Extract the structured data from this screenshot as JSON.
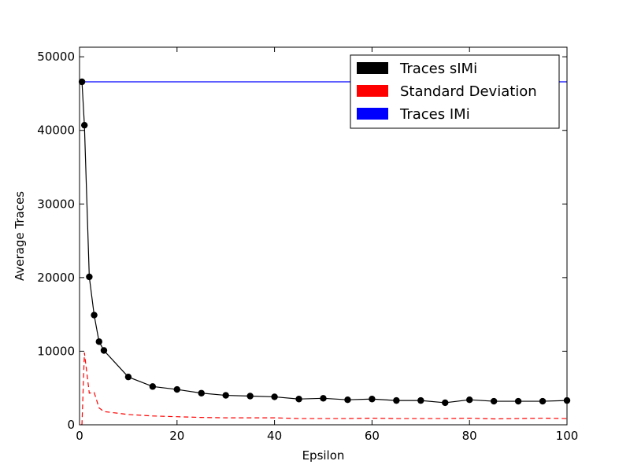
{
  "chart_data": {
    "type": "line",
    "title": "",
    "xlabel": "Epsilon",
    "ylabel": "Average Traces",
    "xlim": [
      0,
      100
    ],
    "ylim": [
      0,
      51300
    ],
    "x_ticks": [
      0,
      20,
      40,
      60,
      80,
      100
    ],
    "y_ticks": [
      0,
      10000,
      20000,
      30000,
      40000,
      50000
    ],
    "grid": false,
    "legend_position": "top-right",
    "series": [
      {
        "name": "Traces sIMi",
        "color": "#000000",
        "style": "solid-with-markers",
        "x": [
          0.5,
          1,
          2,
          3,
          4,
          5,
          10,
          15,
          20,
          25,
          30,
          35,
          40,
          45,
          50,
          55,
          60,
          65,
          70,
          75,
          80,
          85,
          90,
          95,
          100
        ],
        "y": [
          46600,
          40700,
          20100,
          14900,
          11300,
          10100,
          6500,
          5200,
          4800,
          4300,
          4000,
          3900,
          3800,
          3500,
          3600,
          3400,
          3500,
          3300,
          3300,
          3000,
          3400,
          3200,
          3200,
          3200,
          3300
        ]
      },
      {
        "name": "Standard Deviation",
        "color": "#ff0000",
        "style": "dashed",
        "x": [
          0.4,
          0.5,
          1,
          2,
          3,
          4,
          5,
          10,
          15,
          20,
          25,
          30,
          35,
          40,
          45,
          50,
          55,
          60,
          65,
          70,
          75,
          80,
          85,
          90,
          95,
          100
        ],
        "y": [
          0,
          100,
          9800,
          4300,
          4400,
          2300,
          1800,
          1400,
          1200,
          1100,
          1000,
          950,
          950,
          950,
          850,
          850,
          850,
          900,
          850,
          850,
          850,
          900,
          800,
          850,
          900,
          850
        ]
      },
      {
        "name": "Traces IMi",
        "color": "#0000ff",
        "style": "solid",
        "x": [
          0,
          100
        ],
        "y": [
          46600,
          46600
        ]
      }
    ]
  }
}
